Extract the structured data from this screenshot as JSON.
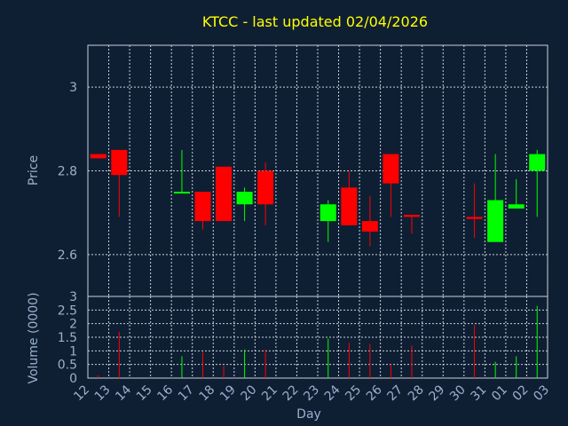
{
  "colors": {
    "background": "#0f1f33",
    "title": "#ffff00",
    "axis_text": "#9ab0cc",
    "grid": "#c8d0dc",
    "up": "#00ff00",
    "down": "#ff0000"
  },
  "chart_data": [
    {
      "type": "candlestick",
      "title": "KTCC - last updated 02/04/2026",
      "ylabel": "Price",
      "ylim": [
        2.5,
        3.1
      ],
      "yticks": [
        2.6,
        2.8,
        3
      ],
      "ytick_labels": [
        "2.6",
        "2.8",
        "3"
      ],
      "grid": true,
      "candles": [
        {
          "day": "12",
          "open": 2.84,
          "high": 2.84,
          "low": 2.83,
          "close": 2.83
        },
        {
          "day": "13",
          "open": 2.85,
          "high": 2.85,
          "low": 2.69,
          "close": 2.79
        },
        {
          "day": "16",
          "open": 2.75,
          "high": 2.85,
          "low": 2.75,
          "close": 2.75
        },
        {
          "day": "17",
          "open": 2.75,
          "high": 2.75,
          "low": 2.66,
          "close": 2.68
        },
        {
          "day": "18",
          "open": 2.81,
          "high": 2.81,
          "low": 2.68,
          "close": 2.68
        },
        {
          "day": "19",
          "open": 2.72,
          "high": 2.76,
          "low": 2.68,
          "close": 2.75
        },
        {
          "day": "20",
          "open": 2.8,
          "high": 2.82,
          "low": 2.67,
          "close": 2.72
        },
        {
          "day": "23",
          "open": 2.68,
          "high": 2.73,
          "low": 2.63,
          "close": 2.72
        },
        {
          "day": "24",
          "open": 2.76,
          "high": 2.8,
          "low": 2.67,
          "close": 2.67
        },
        {
          "day": "25",
          "open": 2.68,
          "high": 2.74,
          "low": 2.62,
          "close": 2.655
        },
        {
          "day": "26",
          "open": 2.84,
          "high": 2.84,
          "low": 2.69,
          "close": 2.77
        },
        {
          "day": "27",
          "open": 2.695,
          "high": 2.695,
          "low": 2.65,
          "close": 2.69
        },
        {
          "day": "30",
          "open": 2.69,
          "high": 2.77,
          "low": 2.64,
          "close": 2.685
        },
        {
          "day": "31",
          "open": 2.63,
          "high": 2.84,
          "low": 2.63,
          "close": 2.73
        },
        {
          "day": "01",
          "open": 2.71,
          "high": 2.78,
          "low": 2.71,
          "close": 2.72
        },
        {
          "day": "02",
          "open": 2.8,
          "high": 2.85,
          "low": 2.69,
          "close": 2.84
        }
      ]
    },
    {
      "type": "bar",
      "ylabel": "Volume (0000)",
      "ylim": [
        0,
        3
      ],
      "yticks": [
        0,
        0.5,
        1,
        1.5,
        2,
        2.5,
        3
      ],
      "ytick_labels": [
        "0",
        "0.5",
        "1",
        "1.5",
        "2",
        "2.5",
        "3"
      ],
      "xlabel": "Day",
      "categories": [
        "12",
        "13",
        "14",
        "15",
        "16",
        "17",
        "18",
        "19",
        "20",
        "21",
        "22",
        "23",
        "24",
        "25",
        "26",
        "27",
        "28",
        "29",
        "30",
        "31",
        "01",
        "02",
        "03"
      ],
      "volumes": [
        {
          "day": "12",
          "value": 0.1,
          "dir": "down"
        },
        {
          "day": "13",
          "value": 1.7,
          "dir": "down"
        },
        {
          "day": "16",
          "value": 0.8,
          "dir": "up"
        },
        {
          "day": "17",
          "value": 0.95,
          "dir": "down"
        },
        {
          "day": "18",
          "value": 0.45,
          "dir": "down"
        },
        {
          "day": "19",
          "value": 1.05,
          "dir": "up"
        },
        {
          "day": "20",
          "value": 1.05,
          "dir": "down"
        },
        {
          "day": "23",
          "value": 1.45,
          "dir": "up"
        },
        {
          "day": "24",
          "value": 1.3,
          "dir": "down"
        },
        {
          "day": "25",
          "value": 1.25,
          "dir": "down"
        },
        {
          "day": "26",
          "value": 0.5,
          "dir": "down"
        },
        {
          "day": "27",
          "value": 1.2,
          "dir": "down"
        },
        {
          "day": "30",
          "value": 1.95,
          "dir": "down"
        },
        {
          "day": "31",
          "value": 0.6,
          "dir": "up"
        },
        {
          "day": "01",
          "value": 0.8,
          "dir": "up"
        },
        {
          "day": "02",
          "value": 2.65,
          "dir": "up"
        }
      ]
    }
  ]
}
